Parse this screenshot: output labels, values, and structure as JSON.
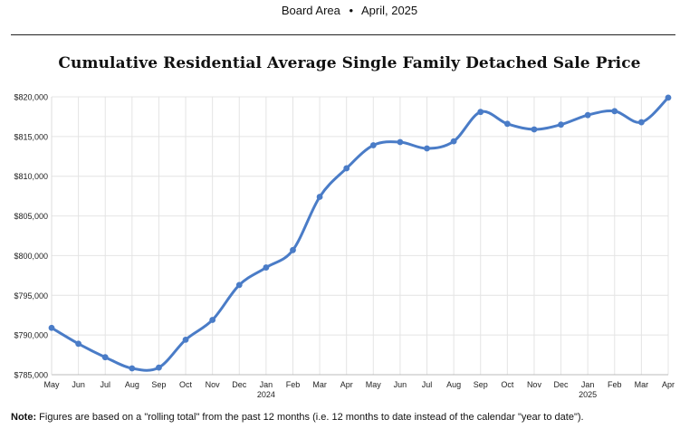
{
  "header": {
    "area": "Board Area",
    "separator": "•",
    "date": "April, 2025"
  },
  "chart_data": {
    "type": "line",
    "title": "Cumulative Residential Average Single Family Detached Sale Price",
    "xlabel": "",
    "ylabel": "",
    "grid": true,
    "color": "#4a7cc7",
    "categories": [
      "May",
      "Jun",
      "Jul",
      "Aug",
      "Sep",
      "Oct",
      "Nov",
      "Dec",
      "Jan",
      "Feb",
      "Mar",
      "Apr",
      "May",
      "Jun",
      "Jul",
      "Aug",
      "Sep",
      "Oct",
      "Nov",
      "Dec",
      "Jan",
      "Feb",
      "Mar",
      "Apr"
    ],
    "year_labels": {
      "8": "2024",
      "20": "2025"
    },
    "values": [
      790900,
      788900,
      787200,
      785800,
      785900,
      789400,
      791900,
      796300,
      798500,
      800700,
      807400,
      811000,
      813900,
      814300,
      813500,
      814400,
      818100,
      816600,
      815900,
      816500,
      817700,
      818200,
      816800,
      819900
    ],
    "ylim": [
      785000,
      820000
    ],
    "yticks": [
      785000,
      790000,
      795000,
      800000,
      805000,
      810000,
      815000,
      820000
    ],
    "ytick_labels": [
      "$785,000",
      "$790,000",
      "$795,000",
      "$800,000",
      "$805,000",
      "$810,000",
      "$815,000",
      "$820,000"
    ]
  },
  "note": {
    "label": "Note:",
    "text": "Figures are based on a \"rolling total\" from the past 12 months (i.e. 12 months to date instead of the calendar \"year to date\")."
  }
}
